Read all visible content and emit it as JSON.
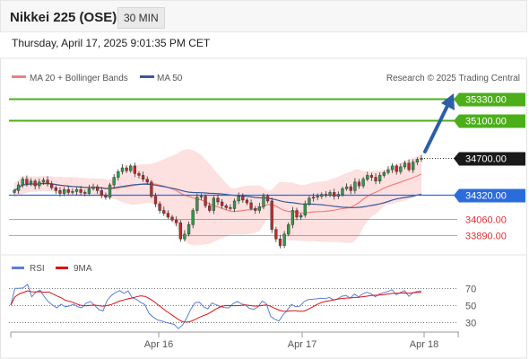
{
  "header": {
    "title": "Nikkei 225 (OSE)",
    "interval": "30 MIN"
  },
  "timestamp": "Thursday, April 17, 2025 9:01:35 PM CET",
  "legend": {
    "ma20": "MA 20 + Bollinger Bands",
    "ma50": "MA 50",
    "credit": "Research © 2025 Trading Central",
    "rsi": "RSI",
    "ma9": "9MA"
  },
  "colors": {
    "ma20": "#f08080",
    "ma50": "#3a5a99",
    "band": "#fde0e0",
    "resistance": "#4caf1a",
    "pivot": "#2b6cdb",
    "support": "#e03030",
    "up": "#2e9e4a",
    "down": "#c62828",
    "rsi": "#5b7fd6",
    "ma9": "#e01010"
  },
  "chart_data": [
    {
      "type": "candlestick",
      "x_labels": [
        "Apr 16",
        "Apr 17",
        "Apr 18"
      ],
      "ylim": [
        33700,
        35500
      ],
      "levels": [
        {
          "kind": "resistance",
          "label": "35330.00",
          "value": 35330
        },
        {
          "kind": "resistance",
          "label": "35100.00",
          "value": 35100
        },
        {
          "kind": "last",
          "label": "34700.00",
          "value": 34700
        },
        {
          "kind": "pivot",
          "label": "34320.00",
          "value": 34320
        },
        {
          "kind": "support",
          "label": "34060.00",
          "value": 34060
        },
        {
          "kind": "support",
          "label": "33890.00",
          "value": 33890
        }
      ],
      "close": [
        34360,
        34420,
        34480,
        34430,
        34460,
        34410,
        34450,
        34470,
        34430,
        34390,
        34360,
        34330,
        34370,
        34340,
        34350,
        34370,
        34340,
        34330,
        34380,
        34400,
        34360,
        34310,
        34290,
        34420,
        34500,
        34560,
        34600,
        34570,
        34620,
        34540,
        34520,
        34480,
        34450,
        34300,
        34220,
        34150,
        34120,
        34080,
        34050,
        34020,
        33850,
        33900,
        34000,
        34150,
        34290,
        34300,
        34200,
        34150,
        34280,
        34240,
        34200,
        34180,
        34170,
        34250,
        34300,
        34260,
        34230,
        34170,
        34150,
        34190,
        34300,
        34250,
        33950,
        33850,
        33780,
        33900,
        34000,
        34150,
        34080,
        34100,
        34220,
        34280,
        34290,
        34300,
        34320,
        34310,
        34340,
        34300,
        34320,
        34380,
        34400,
        34360,
        34450,
        34410,
        34480,
        34520,
        34500,
        34460,
        34520,
        34550,
        34580,
        34620,
        34560,
        34610,
        34650,
        34580,
        34660,
        34690,
        34700
      ]
    },
    {
      "type": "line",
      "title": "RSI",
      "y_ticks": [
        70,
        50,
        30
      ],
      "ylim": [
        20,
        80
      ]
    }
  ]
}
